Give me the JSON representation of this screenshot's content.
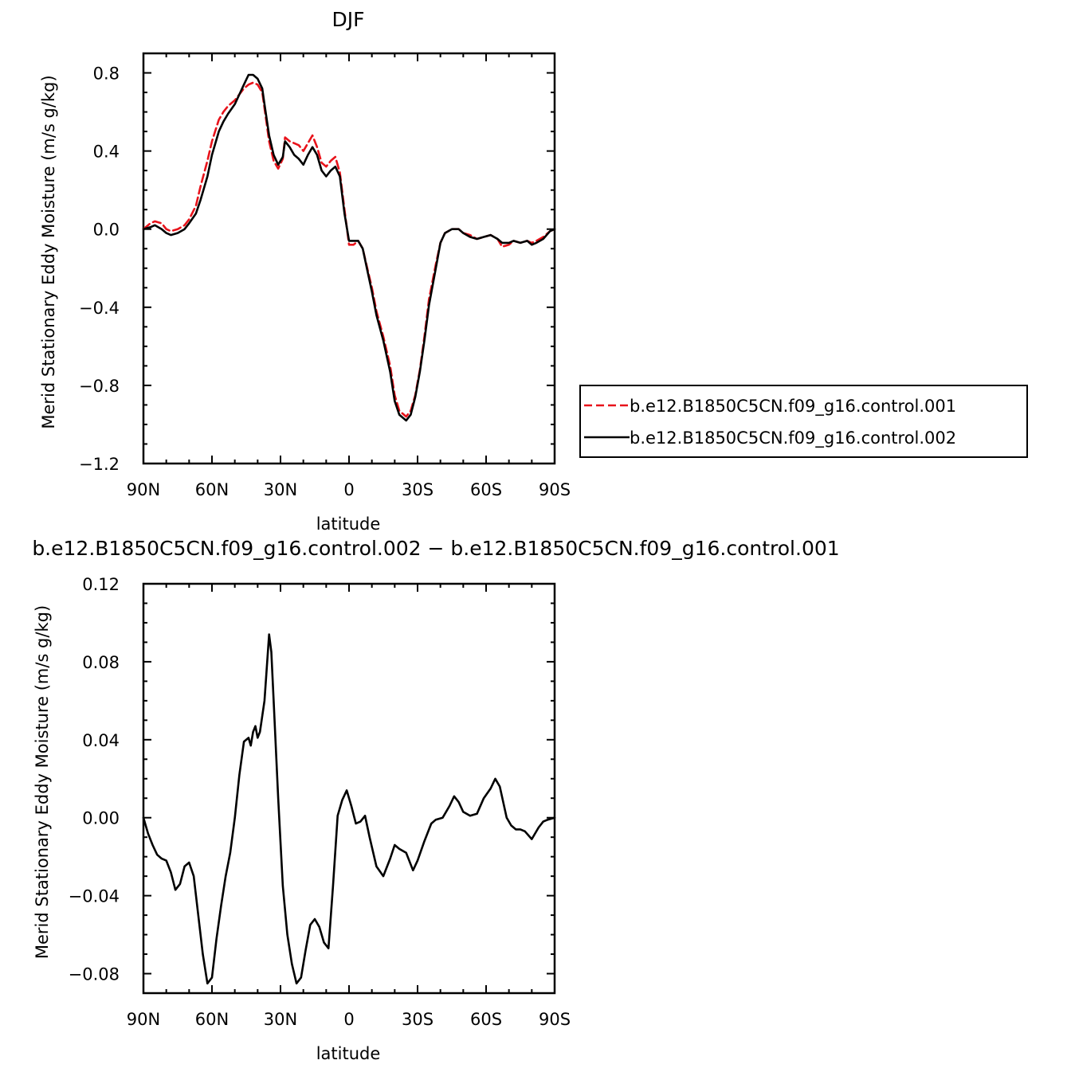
{
  "chart_data": [
    {
      "type": "line",
      "title": "DJF",
      "xlabel": "latitude",
      "ylabel": "Merid Stationary Eddy Moisture (m/s g/kg)",
      "xlim": [
        90,
        -90
      ],
      "ylim": [
        -1.2,
        0.9
      ],
      "x_ticks": [
        90,
        60,
        30,
        0,
        -30,
        -60,
        -90
      ],
      "x_tick_labels": [
        "90N",
        "60N",
        "30N",
        "0",
        "30S",
        "60S",
        "90S"
      ],
      "y_ticks": [
        0.8,
        0.4,
        0.0,
        -0.4,
        -0.8,
        -1.2
      ],
      "y_tick_labels": [
        "0.8",
        "0.4",
        "0.0",
        "−0.4",
        "−0.8",
        "−1.2"
      ],
      "legend": {
        "position": "right",
        "entries": [
          "b.e12.B1850C5CN.f09_g16.control.001",
          "b.e12.B1850C5CN.f09_g16.control.002"
        ]
      },
      "series": [
        {
          "name": "b.e12.B1850C5CN.f09_g16.control.001",
          "color": "#e8131b",
          "dash": "dashed",
          "x": [
            90,
            87,
            85,
            82,
            80,
            78,
            75,
            72,
            70,
            67,
            65,
            62,
            60,
            57,
            55,
            53,
            50,
            48,
            46,
            44,
            42,
            40,
            38,
            37,
            35,
            33,
            31,
            29,
            28,
            26,
            24,
            22,
            20,
            18,
            16,
            14,
            12,
            10,
            8,
            6,
            4,
            2,
            0,
            -2,
            -4,
            -6,
            -8,
            -10,
            -12,
            -15,
            -18,
            -20,
            -22,
            -25,
            -27,
            -29,
            -31,
            -33,
            -35,
            -38,
            -40,
            -42,
            -45,
            -48,
            -50,
            -53,
            -56,
            -59,
            -62,
            -65,
            -67,
            -70,
            -72,
            -75,
            -78,
            -80,
            -82,
            -85,
            -88,
            -90
          ],
          "y": [
            0.0,
            0.03,
            0.04,
            0.03,
            0.0,
            -0.01,
            0.0,
            0.02,
            0.05,
            0.12,
            0.22,
            0.35,
            0.45,
            0.56,
            0.6,
            0.63,
            0.66,
            0.69,
            0.72,
            0.74,
            0.75,
            0.74,
            0.7,
            0.62,
            0.45,
            0.35,
            0.31,
            0.36,
            0.47,
            0.45,
            0.44,
            0.43,
            0.4,
            0.44,
            0.48,
            0.42,
            0.34,
            0.32,
            0.35,
            0.37,
            0.29,
            0.1,
            -0.08,
            -0.08,
            -0.06,
            -0.1,
            -0.2,
            -0.3,
            -0.42,
            -0.55,
            -0.7,
            -0.85,
            -0.93,
            -0.96,
            -0.93,
            -0.85,
            -0.72,
            -0.55,
            -0.36,
            -0.18,
            -0.07,
            -0.02,
            0.0,
            0.0,
            -0.02,
            -0.03,
            -0.05,
            -0.04,
            -0.03,
            -0.05,
            -0.09,
            -0.08,
            -0.06,
            -0.07,
            -0.06,
            -0.07,
            -0.06,
            -0.04,
            -0.01,
            0.0
          ]
        },
        {
          "name": "b.e12.B1850C5CN.f09_g16.control.002",
          "color": "#000000",
          "dash": "solid",
          "x": [
            90,
            87,
            85,
            82,
            80,
            78,
            75,
            72,
            70,
            67,
            65,
            62,
            60,
            57,
            55,
            53,
            50,
            48,
            46,
            44,
            42,
            40,
            38,
            37,
            35,
            33,
            31,
            29,
            28,
            26,
            24,
            22,
            20,
            18,
            16,
            14,
            12,
            10,
            8,
            6,
            4,
            2,
            0,
            -2,
            -4,
            -6,
            -8,
            -10,
            -12,
            -15,
            -18,
            -20,
            -22,
            -25,
            -27,
            -29,
            -31,
            -33,
            -35,
            -38,
            -40,
            -42,
            -45,
            -48,
            -50,
            -53,
            -56,
            -59,
            -62,
            -65,
            -67,
            -70,
            -72,
            -75,
            -78,
            -80,
            -82,
            -85,
            -88,
            -90
          ],
          "y": [
            0.0,
            0.01,
            0.02,
            0.0,
            -0.02,
            -0.03,
            -0.02,
            0.0,
            0.03,
            0.08,
            0.15,
            0.27,
            0.38,
            0.5,
            0.55,
            0.59,
            0.64,
            0.69,
            0.74,
            0.79,
            0.79,
            0.77,
            0.72,
            0.64,
            0.48,
            0.38,
            0.33,
            0.37,
            0.45,
            0.42,
            0.38,
            0.36,
            0.33,
            0.38,
            0.42,
            0.38,
            0.3,
            0.27,
            0.3,
            0.32,
            0.27,
            0.08,
            -0.06,
            -0.06,
            -0.06,
            -0.1,
            -0.21,
            -0.32,
            -0.44,
            -0.57,
            -0.73,
            -0.88,
            -0.95,
            -0.98,
            -0.95,
            -0.86,
            -0.73,
            -0.57,
            -0.39,
            -0.2,
            -0.07,
            -0.02,
            0.0,
            0.0,
            -0.02,
            -0.04,
            -0.05,
            -0.04,
            -0.03,
            -0.05,
            -0.07,
            -0.07,
            -0.06,
            -0.07,
            -0.06,
            -0.08,
            -0.07,
            -0.05,
            -0.01,
            0.0
          ]
        }
      ]
    },
    {
      "type": "line",
      "title": "b.e12.B1850C5CN.f09_g16.control.002 − b.e12.B1850C5CN.f09_g16.control.001",
      "xlabel": "latitude",
      "ylabel": "Merid Stationary Eddy Moisture (m/s g/kg)",
      "xlim": [
        90,
        -90
      ],
      "ylim": [
        -0.09,
        0.12
      ],
      "x_ticks": [
        90,
        60,
        30,
        0,
        -30,
        -60,
        -90
      ],
      "x_tick_labels": [
        "90N",
        "60N",
        "30N",
        "0",
        "30S",
        "60S",
        "90S"
      ],
      "y_ticks": [
        0.12,
        0.08,
        0.04,
        0.0,
        -0.04,
        -0.08
      ],
      "y_tick_labels": [
        "0.12",
        "0.08",
        "0.04",
        "0.00",
        "−0.04",
        "−0.08"
      ],
      "series": [
        {
          "color": "#000000",
          "dash": "solid",
          "x": [
            90,
            88,
            86,
            84,
            82,
            80,
            78,
            76,
            74,
            72,
            70,
            68,
            66,
            64,
            62,
            60,
            58,
            56,
            54,
            52,
            50,
            48,
            46,
            44,
            43,
            42,
            41,
            40,
            39,
            37,
            35,
            34,
            33,
            31,
            29,
            27,
            25,
            23,
            21,
            19,
            17,
            15,
            13,
            11,
            9,
            7,
            5,
            3,
            1,
            -1,
            -3,
            -5,
            -7,
            -9,
            -12,
            -15,
            -18,
            -20,
            -22,
            -25,
            -28,
            -30,
            -33,
            -36,
            -38,
            -41,
            -44,
            -46,
            -48,
            -50,
            -53,
            -56,
            -59,
            -62,
            -64,
            -66,
            -69,
            -71,
            -73,
            -75,
            -77,
            -80,
            -83,
            -85,
            -87,
            -90
          ],
          "y": [
            0.0,
            -0.008,
            -0.014,
            -0.019,
            -0.021,
            -0.022,
            -0.028,
            -0.037,
            -0.034,
            -0.025,
            -0.023,
            -0.03,
            -0.05,
            -0.07,
            -0.085,
            -0.082,
            -0.062,
            -0.045,
            -0.03,
            -0.018,
            0.0,
            0.022,
            0.039,
            0.041,
            0.037,
            0.044,
            0.047,
            0.041,
            0.044,
            0.06,
            0.094,
            0.085,
            0.06,
            0.01,
            -0.035,
            -0.06,
            -0.075,
            -0.085,
            -0.082,
            -0.068,
            -0.055,
            -0.052,
            -0.056,
            -0.064,
            -0.067,
            -0.035,
            0.001,
            0.009,
            0.014,
            0.006,
            -0.003,
            -0.002,
            0.001,
            -0.01,
            -0.025,
            -0.03,
            -0.021,
            -0.014,
            -0.016,
            -0.018,
            -0.027,
            -0.022,
            -0.012,
            -0.003,
            -0.001,
            0.0,
            0.006,
            0.011,
            0.008,
            0.003,
            0.001,
            0.002,
            0.01,
            0.015,
            0.02,
            0.016,
            0.0,
            -0.004,
            -0.006,
            -0.006,
            -0.007,
            -0.011,
            -0.005,
            -0.002,
            -0.001,
            0.0
          ]
        }
      ]
    }
  ]
}
